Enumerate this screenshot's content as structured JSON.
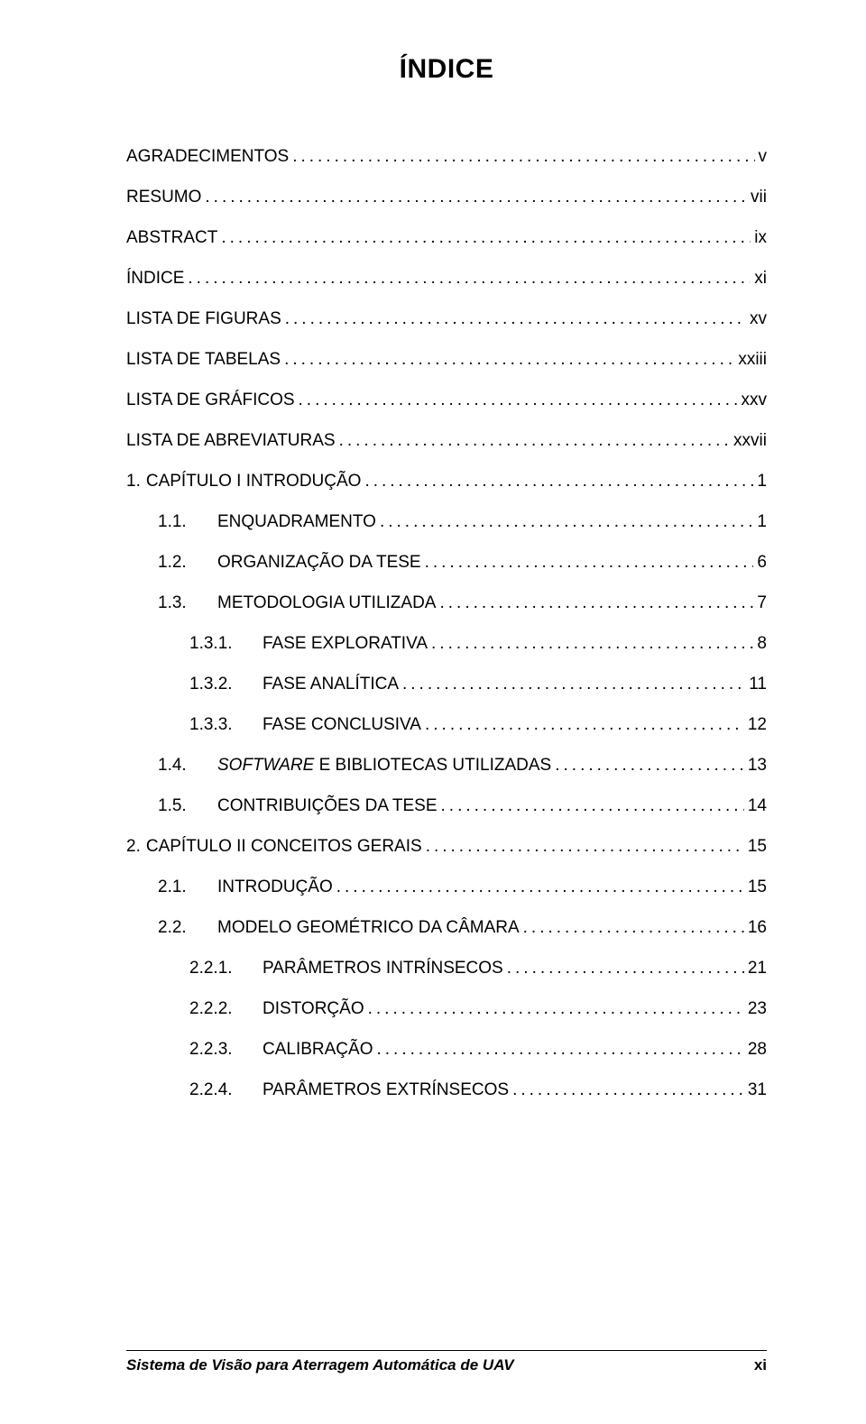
{
  "title": "ÍNDICE",
  "toc": [
    {
      "level": 0,
      "num": "",
      "label": "AGRADECIMENTOS",
      "page": "v"
    },
    {
      "level": 0,
      "num": "",
      "label": "RESUMO",
      "page": "vii"
    },
    {
      "level": 0,
      "num": "",
      "label": "ABSTRACT",
      "page": "ix"
    },
    {
      "level": 0,
      "num": "",
      "label": "ÍNDICE",
      "page": "xi"
    },
    {
      "level": 0,
      "num": "",
      "label": "LISTA DE FIGURAS",
      "page": "xv"
    },
    {
      "level": 0,
      "num": "",
      "label": "LISTA DE TABELAS",
      "page": "xxiii"
    },
    {
      "level": 0,
      "num": "",
      "label": "LISTA DE GRÁFICOS",
      "page": "xxv"
    },
    {
      "level": 0,
      "num": "",
      "label": "LISTA DE ABREVIATURAS",
      "page": "xxvii"
    },
    {
      "level": 0,
      "num": "1.",
      "label": "CAPÍTULO I INTRODUÇÃO",
      "page": "1"
    },
    {
      "level": 1,
      "num": "1.1.",
      "label": "ENQUADRAMENTO",
      "page": "1"
    },
    {
      "level": 1,
      "num": "1.2.",
      "label": "ORGANIZAÇÃO DA TESE",
      "page": "6"
    },
    {
      "level": 1,
      "num": "1.3.",
      "label": "METODOLOGIA UTILIZADA",
      "page": "7"
    },
    {
      "level": 2,
      "num": "1.3.1.",
      "label": "FASE EXPLORATIVA",
      "page": "8"
    },
    {
      "level": 2,
      "num": "1.3.2.",
      "label": "FASE ANALÍTICA",
      "page": "11"
    },
    {
      "level": 2,
      "num": "1.3.3.",
      "label": "FASE CONCLUSIVA",
      "page": "12"
    },
    {
      "level": 1,
      "num": "1.4.",
      "label_html": "<em>SOFTWARE</em> E BIBLIOTECAS UTILIZADAS",
      "label": "SOFTWARE E BIBLIOTECAS UTILIZADAS",
      "page": "13"
    },
    {
      "level": 1,
      "num": "1.5.",
      "label": "CONTRIBUIÇÕES DA TESE",
      "page": "14"
    },
    {
      "level": 0,
      "num": "2.",
      "label": "CAPÍTULO II CONCEITOS GERAIS",
      "page": "15"
    },
    {
      "level": 1,
      "num": "2.1.",
      "label": "INTRODUÇÃO",
      "page": "15"
    },
    {
      "level": 1,
      "num": "2.2.",
      "label": "MODELO GEOMÉTRICO DA CÂMARA",
      "page": "16"
    },
    {
      "level": 2,
      "num": "2.2.1.",
      "label": "PARÂMETROS INTRÍNSECOS",
      "page": "21"
    },
    {
      "level": 2,
      "num": "2.2.2.",
      "label": "DISTORÇÃO",
      "page": "23"
    },
    {
      "level": 2,
      "num": "2.2.3.",
      "label": "CALIBRAÇÃO",
      "page": "28"
    },
    {
      "level": 2,
      "num": "2.2.4.",
      "label": "PARÂMETROS EXTRÍNSECOS",
      "page": "31"
    }
  ],
  "footer": {
    "left": "Sistema de Visão para Aterragem Automática de UAV",
    "right": "xi"
  }
}
